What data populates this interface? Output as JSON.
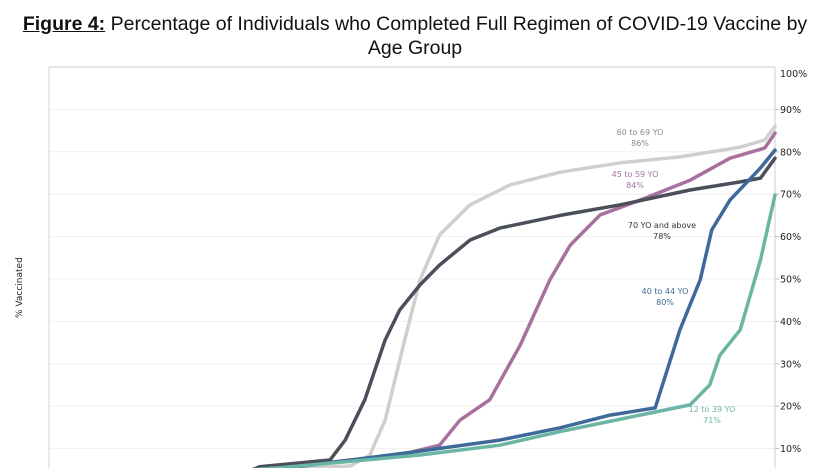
{
  "title": {
    "figure_label": "Figure 4:",
    "text": " Percentage of Individuals who Completed Full Regimen of COVID-19 Vaccine by",
    "line2": "Age Group"
  },
  "chart_data": {
    "type": "line",
    "title": "Figure 4: Percentage of Individuals who Completed Full Regimen of COVID-19 Vaccine by Age Group",
    "xlabel": "",
    "ylabel": "% Vaccinated",
    "x_note": "No x-axis labels shown; x is a relative time index from 0 (plot left edge) to 100 (plot right edge)",
    "xlim": [
      0,
      100
    ],
    "ylim": [
      0,
      100
    ],
    "y_axis_side": "right",
    "yticks": [
      10,
      20,
      30,
      40,
      50,
      60,
      70,
      80,
      90,
      100
    ],
    "ytick_labels": [
      "10%",
      "20%",
      "30%",
      "40%",
      "50%",
      "60%",
      "70%",
      "80%",
      "90%",
      "100%"
    ],
    "grid": "horizontal",
    "legend": "none (inline annotations)",
    "series": [
      {
        "name": "60 to 69 YO",
        "final_label": "86%",
        "color": "#cfcfcf",
        "points": [
          [
            28,
            5
          ],
          [
            41.5,
            5.9
          ],
          [
            44.2,
            8.5
          ],
          [
            46.3,
            16.7
          ],
          [
            49,
            35.6
          ],
          [
            51.1,
            49.8
          ],
          [
            53.8,
            60.4
          ],
          [
            58,
            67.5
          ],
          [
            63.5,
            72.2
          ],
          [
            70.4,
            75.2
          ],
          [
            78.7,
            77.4
          ],
          [
            86.9,
            78.8
          ],
          [
            95.2,
            81.1
          ],
          [
            98.6,
            82.8
          ],
          [
            100,
            86
          ]
        ]
      },
      {
        "name": "45 to 59 YO",
        "final_label": "84%",
        "color": "#a8709f",
        "points": [
          [
            28,
            5
          ],
          [
            38.7,
            6.8
          ],
          [
            48.3,
            8.5
          ],
          [
            53.8,
            10.8
          ],
          [
            56.6,
            16.7
          ],
          [
            60.7,
            21.5
          ],
          [
            64.9,
            34.4
          ],
          [
            69,
            49.8
          ],
          [
            71.8,
            58
          ],
          [
            75.9,
            65.1
          ],
          [
            81.4,
            68.6
          ],
          [
            88.3,
            73.3
          ],
          [
            93.8,
            78.5
          ],
          [
            98.6,
            80.9
          ],
          [
            100,
            84.4
          ]
        ]
      },
      {
        "name": "70 YO and above",
        "final_label": "78%",
        "color": "#4a4f5a",
        "points": [
          [
            28,
            5
          ],
          [
            29,
            5.7
          ],
          [
            38.7,
            7.3
          ],
          [
            40.8,
            12
          ],
          [
            43.5,
            21.5
          ],
          [
            46.3,
            35.6
          ],
          [
            48.3,
            42.7
          ],
          [
            51.1,
            48.6
          ],
          [
            53.8,
            53.3
          ],
          [
            58,
            59.2
          ],
          [
            62.1,
            62
          ],
          [
            70.4,
            65
          ],
          [
            78.7,
            67.5
          ],
          [
            88.3,
            71
          ],
          [
            95.2,
            72.9
          ],
          [
            98,
            73.8
          ],
          [
            100,
            78.5
          ]
        ]
      },
      {
        "name": "40 to 44 YO",
        "final_label": "80%",
        "color": "#3e6a9a",
        "points": [
          [
            28,
            5
          ],
          [
            34.6,
            5.8
          ],
          [
            51.1,
            9.4
          ],
          [
            62.1,
            12
          ],
          [
            70.4,
            14.9
          ],
          [
            77.3,
            17.9
          ],
          [
            83.5,
            19.6
          ],
          [
            86.9,
            38
          ],
          [
            89.7,
            49.8
          ],
          [
            91.3,
            61.6
          ],
          [
            93.8,
            68.6
          ],
          [
            98,
            76.2
          ],
          [
            100,
            80.4
          ]
        ]
      },
      {
        "name": "12 to 39 YO",
        "final_label": "71%",
        "color": "#6bb5a5",
        "points": [
          [
            28,
            5
          ],
          [
            31.8,
            5.5
          ],
          [
            51.1,
            8.5
          ],
          [
            62.1,
            10.8
          ],
          [
            70.4,
            14
          ],
          [
            81.4,
            17.9
          ],
          [
            88.3,
            20.3
          ],
          [
            91,
            25
          ],
          [
            92.4,
            32
          ],
          [
            95.2,
            38
          ],
          [
            98,
            54.5
          ],
          [
            100,
            69.8
          ]
        ]
      }
    ],
    "annotations": [
      {
        "label": "60 to 69 YO",
        "value": "86%",
        "color": "#8a8a8a"
      },
      {
        "label": "45 to 59 YO",
        "value": "84%",
        "color": "#a8709f"
      },
      {
        "label": "70 YO and above",
        "value": "78%",
        "color": "#333333"
      },
      {
        "label": "40 to 44 YO",
        "value": "80%",
        "color": "#3e6a9a"
      },
      {
        "label": "12 to 39 YO",
        "value": "71%",
        "color": "#6bb5a5"
      }
    ]
  }
}
